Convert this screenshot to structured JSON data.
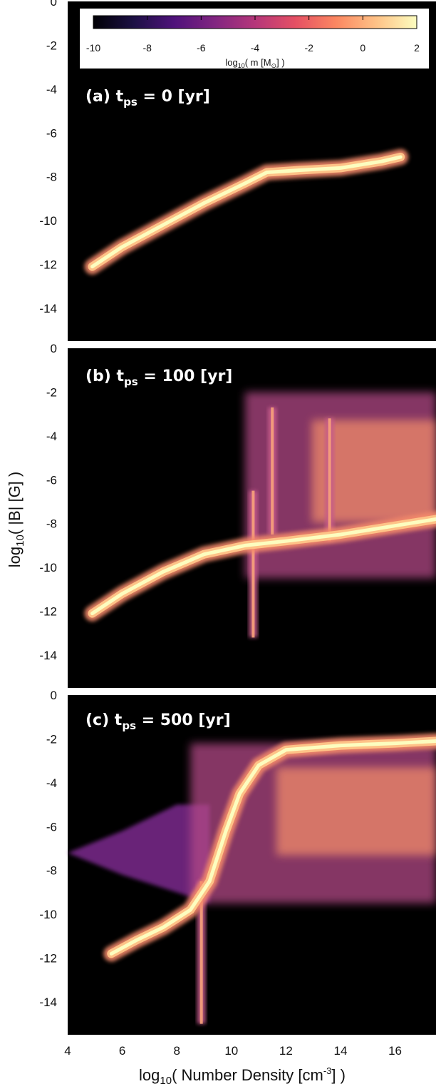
{
  "chart_data": [
    {
      "type": "heatmap",
      "panel_label": "(a) t",
      "panel_sub": "ps",
      "panel_tail": " = 0 [yr]",
      "ylim": [
        -15.5,
        0
      ],
      "xlim": [
        4,
        17.5
      ],
      "yticks": [
        "0",
        "-2",
        "-4",
        "-6",
        "-8",
        "-10",
        "-12",
        "-14"
      ],
      "ytick_values": [
        0,
        -2,
        -4,
        -6,
        -8,
        -10,
        -12,
        -14
      ],
      "ridge": [
        [
          4.9,
          -12.1
        ],
        [
          6,
          -11.2
        ],
        [
          7.5,
          -10.2
        ],
        [
          9,
          -9.2
        ],
        [
          10.5,
          -8.3
        ],
        [
          11.3,
          -7.8
        ],
        [
          12.5,
          -7.7
        ],
        [
          14,
          -7.6
        ],
        [
          15.5,
          -7.3
        ],
        [
          16.2,
          -7.1
        ]
      ],
      "spikes": []
    },
    {
      "type": "heatmap",
      "panel_label": "(b) t",
      "panel_sub": "ps",
      "panel_tail": " = 100 [yr]",
      "ylim": [
        -15.5,
        0
      ],
      "xlim": [
        4,
        17.5
      ],
      "yticks": [
        "0",
        "-2",
        "-4",
        "-6",
        "-8",
        "-10",
        "-12",
        "-14"
      ],
      "ytick_values": [
        0,
        -2,
        -4,
        -6,
        -8,
        -10,
        -12,
        -14
      ],
      "ridge": [
        [
          4.9,
          -12.1
        ],
        [
          6,
          -11.2
        ],
        [
          7.5,
          -10.2
        ],
        [
          9,
          -9.4
        ],
        [
          10.5,
          -9.0
        ],
        [
          12,
          -8.8
        ],
        [
          14,
          -8.5
        ],
        [
          16,
          -8.1
        ],
        [
          17.5,
          -7.8
        ]
      ],
      "spikes": [
        [
          11.5,
          -2.7,
          -8.5
        ],
        [
          13.6,
          -3.2,
          -8.8
        ],
        [
          10.8,
          -6.5,
          -13.2
        ]
      ],
      "cloud": {
        "x": [
          10.5,
          17.5
        ],
        "y": [
          -10.5,
          -2.0
        ]
      }
    },
    {
      "type": "heatmap",
      "panel_label": "(c) t",
      "panel_sub": "ps",
      "panel_tail": " = 500 [yr]",
      "ylim": [
        -15.5,
        0
      ],
      "xlim": [
        4,
        17.5
      ],
      "yticks": [
        "0",
        "-2",
        "-4",
        "-6",
        "-8",
        "-10",
        "-12",
        "-14"
      ],
      "ytick_values": [
        0,
        -2,
        -4,
        -6,
        -8,
        -10,
        -12,
        -14
      ],
      "xticks": [
        "4",
        "6",
        "8",
        "10",
        "12",
        "14",
        "16"
      ],
      "xtick_values": [
        4,
        6,
        8,
        10,
        12,
        14,
        16
      ],
      "xlabel": "log10( Number Density [cm-3] )",
      "ridge": [
        [
          5.6,
          -11.8
        ],
        [
          6.5,
          -11.2
        ],
        [
          7.5,
          -10.6
        ],
        [
          8.5,
          -9.8
        ],
        [
          9.2,
          -8.5
        ],
        [
          9.8,
          -6.2
        ],
        [
          10.3,
          -4.5
        ],
        [
          11,
          -3.2
        ],
        [
          12,
          -2.5
        ],
        [
          14,
          -2.3
        ],
        [
          16,
          -2.2
        ],
        [
          17.5,
          -2.1
        ]
      ],
      "spikes": [
        [
          8.9,
          -8.5,
          -15.0
        ]
      ],
      "cloud": {
        "x": [
          8.5,
          17.5
        ],
        "y": [
          -9.5,
          -2.2
        ]
      },
      "wing": {
        "x": [
          4,
          9
        ],
        "y": [
          -9.2,
          -5
        ]
      }
    }
  ],
  "colorbar": {
    "min": -10,
    "max": 2,
    "ticks": [
      "-10",
      "-8",
      "-6",
      "-4",
      "-2",
      "0",
      "2"
    ],
    "tick_values": [
      -10,
      -8,
      -6,
      -4,
      -2,
      0,
      2
    ],
    "label": "log10( m [M⊙] )",
    "colors": [
      "#000004",
      "#1c1044",
      "#4f127b",
      "#812581",
      "#b5367a",
      "#e55064",
      "#fb8761",
      "#fec287",
      "#fcfdbf"
    ]
  },
  "ylabel": "log10( |B| [G] )",
  "xlabel": "log10( Number Density [cm-3] )"
}
